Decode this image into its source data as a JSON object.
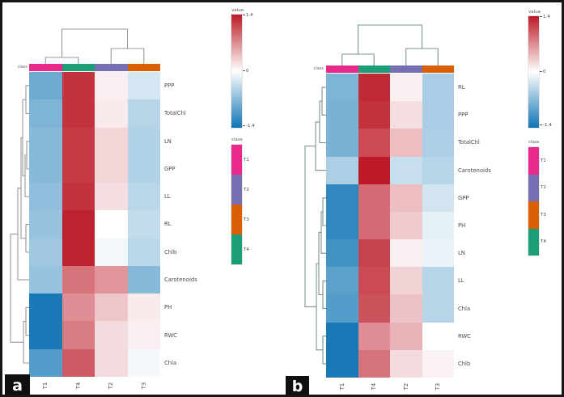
{
  "figure": {
    "background": "#ffffff",
    "border_color": "#161616"
  },
  "class_colors": {
    "T1": "#e7298a",
    "T2": "#7570b3",
    "T3": "#d95f02",
    "T4": "#1b9e77"
  },
  "colormap": {
    "positive": "#bb1a26",
    "zero": "#ffffff",
    "negative": "#0f74b3",
    "limit": 1.4
  },
  "dendrogram_colors": {
    "a": "#9a9a9a",
    "b": "#7e9489"
  },
  "chart_data": [
    {
      "type": "heatmap",
      "panel_label": "a",
      "class_bar_label": "class",
      "columns": [
        "T1",
        "T4",
        "T2",
        "T3"
      ],
      "rows": [
        "PPP",
        "TotalChl",
        "LN",
        "GPP",
        "LL",
        "RL",
        "Chlb",
        "Carotenoids",
        "PH",
        "RWC",
        "Chla"
      ],
      "values": [
        [
          -0.85,
          1.25,
          0.1,
          -0.25
        ],
        [
          -0.75,
          1.25,
          0.12,
          -0.42
        ],
        [
          -0.7,
          1.2,
          0.25,
          -0.45
        ],
        [
          -0.7,
          1.2,
          0.25,
          -0.45
        ],
        [
          -0.65,
          1.25,
          0.2,
          -0.4
        ],
        [
          -0.6,
          1.35,
          0.0,
          -0.35
        ],
        [
          -0.55,
          1.35,
          -0.08,
          -0.4
        ],
        [
          -0.6,
          0.85,
          0.65,
          -0.7
        ],
        [
          -1.35,
          0.7,
          0.35,
          0.13
        ],
        [
          -1.35,
          0.8,
          0.22,
          0.1
        ],
        [
          -1.0,
          1.0,
          0.22,
          -0.06
        ]
      ],
      "value_legend": {
        "title": "value",
        "max": 1.4,
        "mid": 0,
        "min": -1.4,
        "tick_labels": [
          "1.4",
          "0",
          "-1.4"
        ]
      },
      "class_legend": {
        "title": "class",
        "items": [
          "T1",
          "T2",
          "T3",
          "T4"
        ]
      },
      "layout": {
        "row_dendrogram": "left",
        "column_dendrogram": "top",
        "legend_position": "right",
        "grid": false
      }
    },
    {
      "type": "heatmap",
      "panel_label": "b",
      "class_bar_label": "class",
      "columns": [
        "T1",
        "T4",
        "T2",
        "T3"
      ],
      "rows": [
        "RL",
        "PPP",
        "TotalChl",
        "Carotenoids",
        "GPP",
        "PH",
        "LN",
        "LL",
        "Chla",
        "RWC",
        "Chlb"
      ],
      "values": [
        [
          -0.75,
          1.3,
          0.1,
          -0.5
        ],
        [
          -0.78,
          1.25,
          0.2,
          -0.5
        ],
        [
          -0.78,
          1.1,
          0.4,
          -0.48
        ],
        [
          -0.48,
          1.4,
          -0.33,
          -0.42
        ],
        [
          -1.2,
          0.9,
          0.4,
          -0.27
        ],
        [
          -1.2,
          0.9,
          0.32,
          -0.15
        ],
        [
          -1.1,
          1.15,
          0.1,
          -0.13
        ],
        [
          -0.95,
          1.1,
          0.27,
          -0.42
        ],
        [
          -1.0,
          1.05,
          0.37,
          -0.42
        ],
        [
          -1.35,
          0.7,
          0.47,
          0.0
        ],
        [
          -1.35,
          0.85,
          0.22,
          0.08
        ]
      ],
      "value_legend": {
        "title": "value",
        "max": 1.4,
        "mid": 0,
        "min": -1.4,
        "tick_labels": [
          "1.4",
          "0",
          "-1.4"
        ]
      },
      "class_legend": {
        "title": "class",
        "items": [
          "T1",
          "T2",
          "T3",
          "T4"
        ]
      },
      "layout": {
        "row_dendrogram": "left",
        "column_dendrogram": "top",
        "legend_position": "right",
        "grid": false
      }
    }
  ]
}
